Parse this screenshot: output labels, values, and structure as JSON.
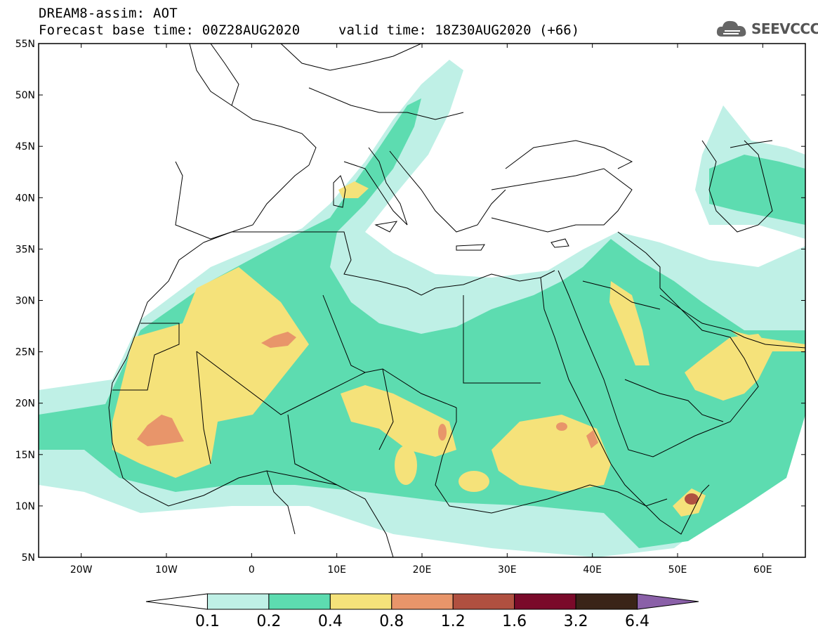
{
  "header": {
    "title": "DREAM8-assim: AOT",
    "base_time": "Forecast base time: 00Z28AUG2020",
    "valid_time": "valid time: 18Z30AUG2020 (+66)",
    "logo_text": "SEEVCCC",
    "logo_icon": "cloud-icon"
  },
  "map": {
    "lon_range": [
      -25,
      65
    ],
    "lat_range": [
      5,
      55
    ],
    "lat_ticks": [
      "55N",
      "50N",
      "45N",
      "40N",
      "35N",
      "30N",
      "25N",
      "20N",
      "15N",
      "10N",
      "5N"
    ],
    "lon_ticks": [
      "20W",
      "10W",
      "0",
      "10E",
      "20E",
      "30E",
      "40E",
      "50E",
      "60E"
    ]
  },
  "colorbar": {
    "labels": [
      "0.1",
      "0.2",
      "0.4",
      "0.8",
      "1.2",
      "1.6",
      "3.2",
      "6.4"
    ],
    "colors": [
      "#ffffff",
      "#bff0e6",
      "#5ddcb0",
      "#f5e27a",
      "#e8956a",
      "#b05040",
      "#7a0a2a",
      "#3a2418",
      "#8a60a8"
    ]
  },
  "colors": {
    "low": "#bff0e6",
    "mid": "#5ddcb0",
    "high": "#f5e27a",
    "peak": "#e8956a",
    "max": "#b05040"
  }
}
